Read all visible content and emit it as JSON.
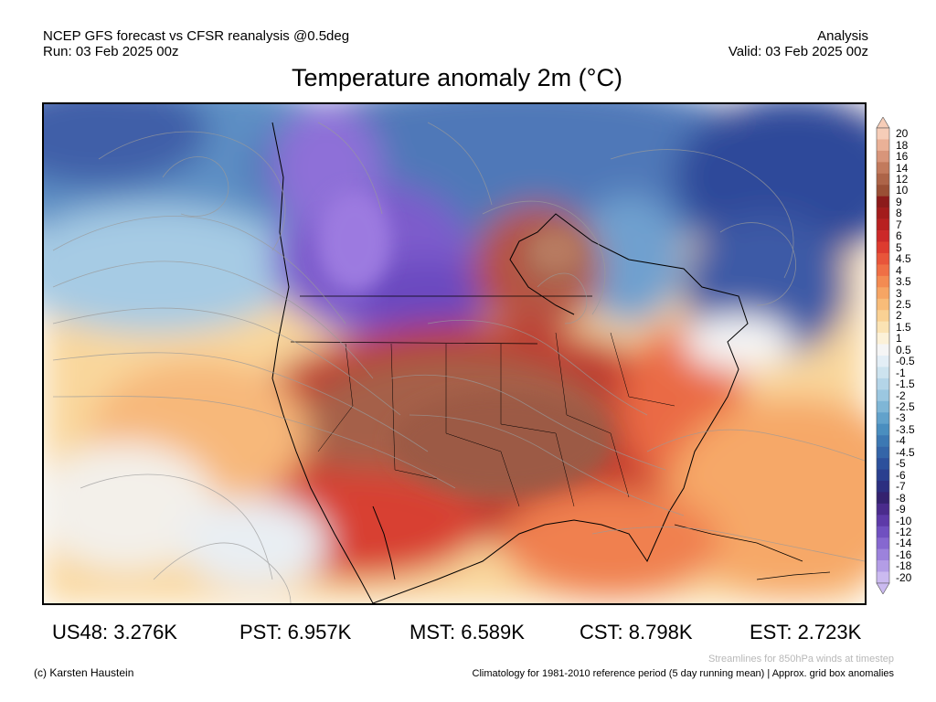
{
  "header": {
    "left_line1": "NCEP GFS forecast vs CFSR reanalysis @0.5deg",
    "left_line2": "Run: 03 Feb 2025 00z",
    "right_line1": "Analysis",
    "right_line2": "Valid: 03 Feb 2025 00z"
  },
  "title": "Temperature anomaly 2m (°C)",
  "colorbar": {
    "labels": [
      "20",
      "18",
      "16",
      "14",
      "12",
      "10",
      "9",
      "8",
      "7",
      "6",
      "5",
      "4.5",
      "4",
      "3.5",
      "3",
      "2.5",
      "2",
      "1.5",
      "1",
      "0.5",
      "-0.5",
      "-1",
      "-1.5",
      "-2",
      "-2.5",
      "-3",
      "-3.5",
      "-4",
      "-4.5",
      "-5",
      "-6",
      "-7",
      "-8",
      "-9",
      "-10",
      "-12",
      "-14",
      "-16",
      "-18",
      "-20"
    ],
    "colors": [
      "#f6cdb8",
      "#eab197",
      "#d8957a",
      "#c27a5d",
      "#ad6448",
      "#9a4f35",
      "#8c1a1a",
      "#a31c1c",
      "#b82020",
      "#cc2929",
      "#dd3b2f",
      "#e8553a",
      "#ef6f45",
      "#f38b52",
      "#f6a564",
      "#f8bc79",
      "#fad194",
      "#fbe3b4",
      "#fcf1d8",
      "#f5f5f5",
      "#e3eef6",
      "#cde3ef",
      "#b4d5e8",
      "#9bc7e0",
      "#7fb6d6",
      "#62a2cb",
      "#4a8ebf",
      "#3c78b3",
      "#3465a8",
      "#2c509c",
      "#2a3f8f",
      "#2c2f80",
      "#34226f",
      "#4a2b8c",
      "#5d3aa8",
      "#7050c0",
      "#8668d0",
      "#9c82dc",
      "#b39de6",
      "#cbbaf0"
    ]
  },
  "stats": [
    {
      "label": "US48: 3.276K"
    },
    {
      "label": "PST: 6.957K"
    },
    {
      "label": "MST: 6.589K"
    },
    {
      "label": "CST: 8.798K"
    },
    {
      "label": "EST: 2.723K"
    }
  ],
  "footer": {
    "streamlines_note": "Streamlines for 850hPa winds at timestep",
    "credit": "(c) Karsten Haustein",
    "climatology": "Climatology for 1981-2010 reference period (5 day running mean) | Approx. grid box anomalies"
  }
}
